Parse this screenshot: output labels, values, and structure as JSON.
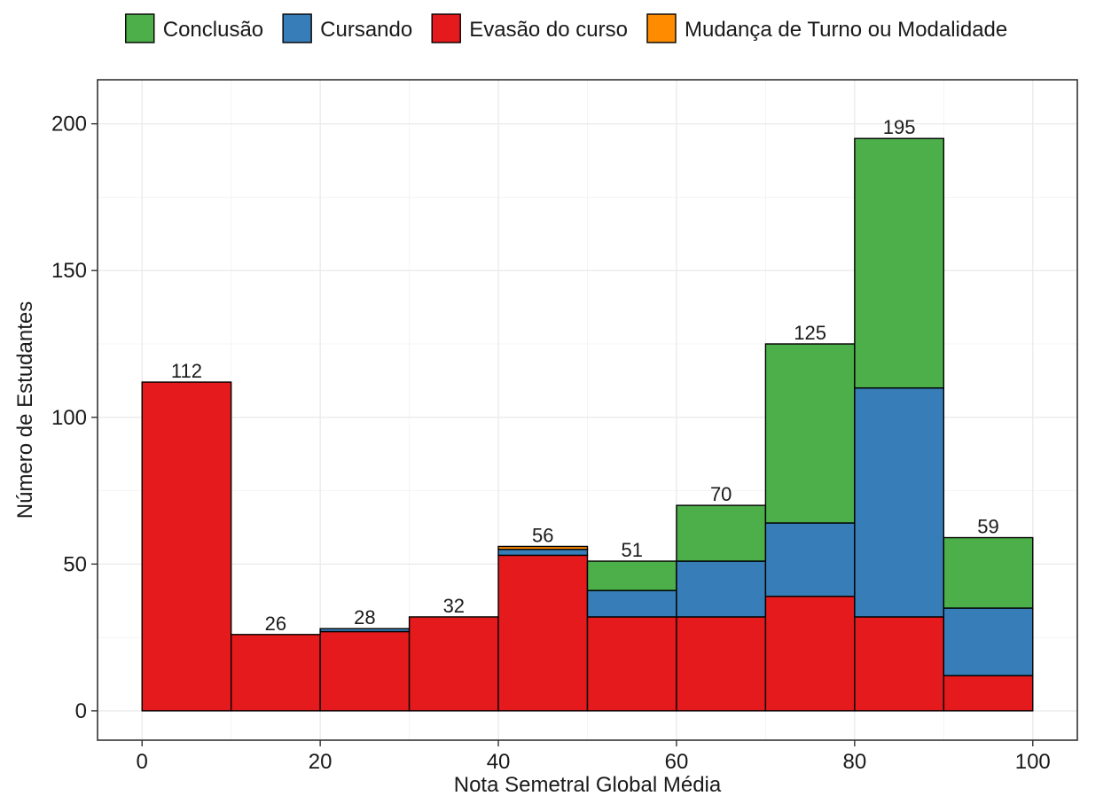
{
  "chart_data": {
    "type": "bar",
    "stacked": true,
    "xlabel": "Nota Semetral Global Média",
    "ylabel": "Número de Estudantes",
    "xlim": [
      -5,
      105
    ],
    "ylim": [
      -10,
      215
    ],
    "x_ticks": [
      0,
      20,
      40,
      60,
      80,
      100
    ],
    "y_ticks": [
      0,
      50,
      100,
      150,
      200
    ],
    "bins": [
      [
        0,
        10
      ],
      [
        10,
        20
      ],
      [
        20,
        30
      ],
      [
        30,
        40
      ],
      [
        40,
        50
      ],
      [
        50,
        60
      ],
      [
        60,
        70
      ],
      [
        70,
        80
      ],
      [
        80,
        90
      ],
      [
        90,
        100
      ]
    ],
    "totals": [
      112,
      26,
      28,
      32,
      56,
      51,
      70,
      125,
      195,
      59
    ],
    "series": [
      {
        "name": "Evasão do curso",
        "color": "#E41A1C",
        "values": [
          112,
          26,
          27,
          32,
          53,
          32,
          32,
          39,
          32,
          12
        ]
      },
      {
        "name": "Cursando",
        "color": "#377EB8",
        "values": [
          0,
          0,
          1,
          0,
          2,
          9,
          19,
          25,
          78,
          23
        ]
      },
      {
        "name": "Conclusão",
        "color": "#4DAF4A",
        "values": [
          0,
          0,
          0,
          0,
          0,
          10,
          19,
          61,
          85,
          24
        ]
      },
      {
        "name": "Mudança de Turno ou Modalidade",
        "color": "#FF8C00",
        "values": [
          0,
          0,
          0,
          0,
          1,
          0,
          0,
          0,
          0,
          0
        ]
      }
    ],
    "legend": {
      "position": "top",
      "order": [
        "Conclusão",
        "Cursando",
        "Evasão do curso",
        "Mudança de Turno ou Modalidade"
      ]
    },
    "grid": true
  }
}
